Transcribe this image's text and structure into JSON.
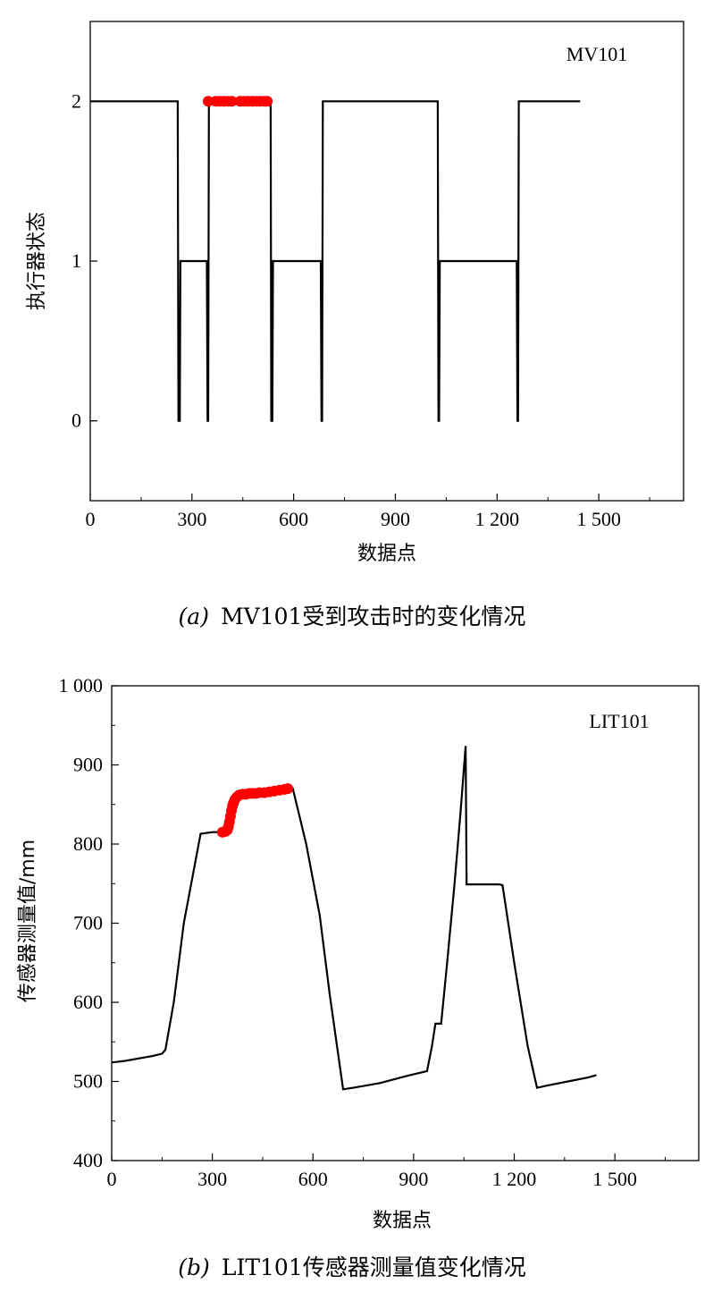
{
  "chart_data": [
    {
      "type": "line",
      "series_label": "MV101",
      "xlabel": "数据点",
      "ylabel": "执行器状态",
      "xlim": [
        0,
        1750
      ],
      "ylim": [
        -0.5,
        2.5
      ],
      "x_ticks": [
        0,
        300,
        600,
        900,
        1200,
        1500
      ],
      "x_tick_labels": [
        "0",
        "300",
        "600",
        "900",
        "1 200",
        "1 500"
      ],
      "y_ticks": [
        0,
        1,
        2
      ],
      "y_tick_labels": [
        "0",
        "1",
        "2"
      ],
      "caption_prefix": "(a)",
      "caption": "MV101受到攻击时的变化情况",
      "line_color": "#000000",
      "attack_color": "#ff0000",
      "line": [
        [
          0,
          2
        ],
        [
          258,
          2
        ],
        [
          260,
          0
        ],
        [
          264,
          0
        ],
        [
          266,
          1
        ],
        [
          344,
          1
        ],
        [
          346,
          0
        ],
        [
          348,
          0
        ],
        [
          350,
          2
        ],
        [
          532,
          2
        ],
        [
          534,
          0
        ],
        [
          537,
          0
        ],
        [
          539,
          1
        ],
        [
          680,
          1
        ],
        [
          682,
          0
        ],
        [
          684,
          0
        ],
        [
          686,
          2
        ],
        [
          1025,
          2
        ],
        [
          1027,
          0
        ],
        [
          1029,
          0
        ],
        [
          1031,
          1
        ],
        [
          1258,
          1
        ],
        [
          1260,
          0
        ],
        [
          1262,
          0
        ],
        [
          1264,
          2
        ],
        [
          1445,
          2
        ]
      ],
      "attack_points": {
        "x": [
          348,
          370,
          382,
          394,
          406,
          418,
          442,
          454,
          466,
          478,
          490,
          502,
          514,
          522
        ],
        "y": [
          2,
          2,
          2,
          2,
          2,
          2,
          2,
          2,
          2,
          2,
          2,
          2,
          2,
          2
        ]
      }
    },
    {
      "type": "line",
      "series_label": "LIT101",
      "xlabel": "数据点",
      "ylabel": "传感器测量值/mm",
      "xlim": [
        0,
        1750
      ],
      "ylim": [
        400,
        1000
      ],
      "x_ticks": [
        0,
        300,
        600,
        900,
        1200,
        1500
      ],
      "x_tick_labels": [
        "0",
        "300",
        "600",
        "900",
        "1 200",
        "1 500"
      ],
      "y_ticks": [
        400,
        500,
        600,
        700,
        800,
        900,
        1000
      ],
      "y_tick_labels": [
        "400",
        "500",
        "600",
        "700",
        "800",
        "900",
        "1 000"
      ],
      "caption_prefix": "(b)",
      "caption": "LIT101传感器测量值变化情况",
      "line_color": "#000000",
      "attack_color": "#ff0000",
      "line": [
        [
          0,
          524
        ],
        [
          40,
          526
        ],
        [
          80,
          529
        ],
        [
          120,
          532
        ],
        [
          150,
          535
        ],
        [
          160,
          540
        ],
        [
          185,
          600
        ],
        [
          215,
          700
        ],
        [
          265,
          813
        ],
        [
          300,
          815
        ],
        [
          330,
          815
        ],
        [
          350,
          820
        ],
        [
          360,
          845
        ],
        [
          375,
          860
        ],
        [
          400,
          863
        ],
        [
          450,
          865
        ],
        [
          500,
          868
        ],
        [
          540,
          870
        ],
        [
          580,
          800
        ],
        [
          620,
          710
        ],
        [
          650,
          610
        ],
        [
          690,
          490
        ],
        [
          720,
          492
        ],
        [
          800,
          498
        ],
        [
          880,
          507
        ],
        [
          940,
          513
        ],
        [
          955,
          545
        ],
        [
          965,
          573
        ],
        [
          982,
          573
        ],
        [
          1000,
          650
        ],
        [
          1022,
          750
        ],
        [
          1040,
          840
        ],
        [
          1055,
          924
        ],
        [
          1058,
          749
        ],
        [
          1100,
          749
        ],
        [
          1155,
          749
        ],
        [
          1165,
          748
        ],
        [
          1200,
          650
        ],
        [
          1240,
          545
        ],
        [
          1268,
          492
        ],
        [
          1300,
          495
        ],
        [
          1360,
          500
        ],
        [
          1420,
          505
        ],
        [
          1445,
          508
        ]
      ],
      "attack_points": {
        "x": [
          330,
          340,
          345,
          348,
          351,
          354,
          357,
          360,
          363,
          367,
          372,
          380,
          390,
          400,
          410,
          420,
          430,
          440,
          455,
          470,
          485,
          500,
          515,
          525
        ],
        "y": [
          815,
          816,
          818,
          822,
          828,
          835,
          842,
          848,
          852,
          856,
          859,
          862,
          863,
          863,
          864,
          864,
          864,
          865,
          865,
          866,
          867,
          868,
          869,
          870
        ]
      }
    }
  ]
}
